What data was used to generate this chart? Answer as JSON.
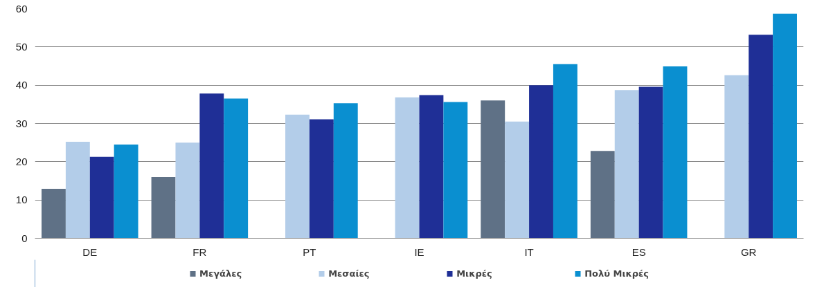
{
  "chart_data": {
    "type": "bar",
    "categories": [
      "DE",
      "FR",
      "PT",
      "IE",
      "IT",
      "ES",
      "GR"
    ],
    "series": [
      {
        "name": "Μεγάλες",
        "color": "#5f7186",
        "values": [
          12.9,
          16,
          null,
          null,
          36,
          22.8,
          null
        ]
      },
      {
        "name": "Μεσαίες",
        "color": "#b3cde9",
        "values": [
          25.2,
          25,
          32.3,
          36.8,
          30.5,
          38.7,
          42.6
        ]
      },
      {
        "name": "Μικρές",
        "color": "#1f2f96",
        "values": [
          21.3,
          37.8,
          31.1,
          37.4,
          40,
          39.6,
          53.2
        ]
      },
      {
        "name": "Πολύ Μικρές",
        "color": "#0a8fd0",
        "values": [
          24.5,
          36.5,
          35.3,
          35.6,
          45.5,
          44.9,
          58.7
        ]
      }
    ],
    "ylim": [
      0,
      60
    ],
    "yticks": [
      0,
      10,
      20,
      30,
      40,
      50,
      60
    ],
    "grid": "y",
    "legend": "bottom"
  }
}
